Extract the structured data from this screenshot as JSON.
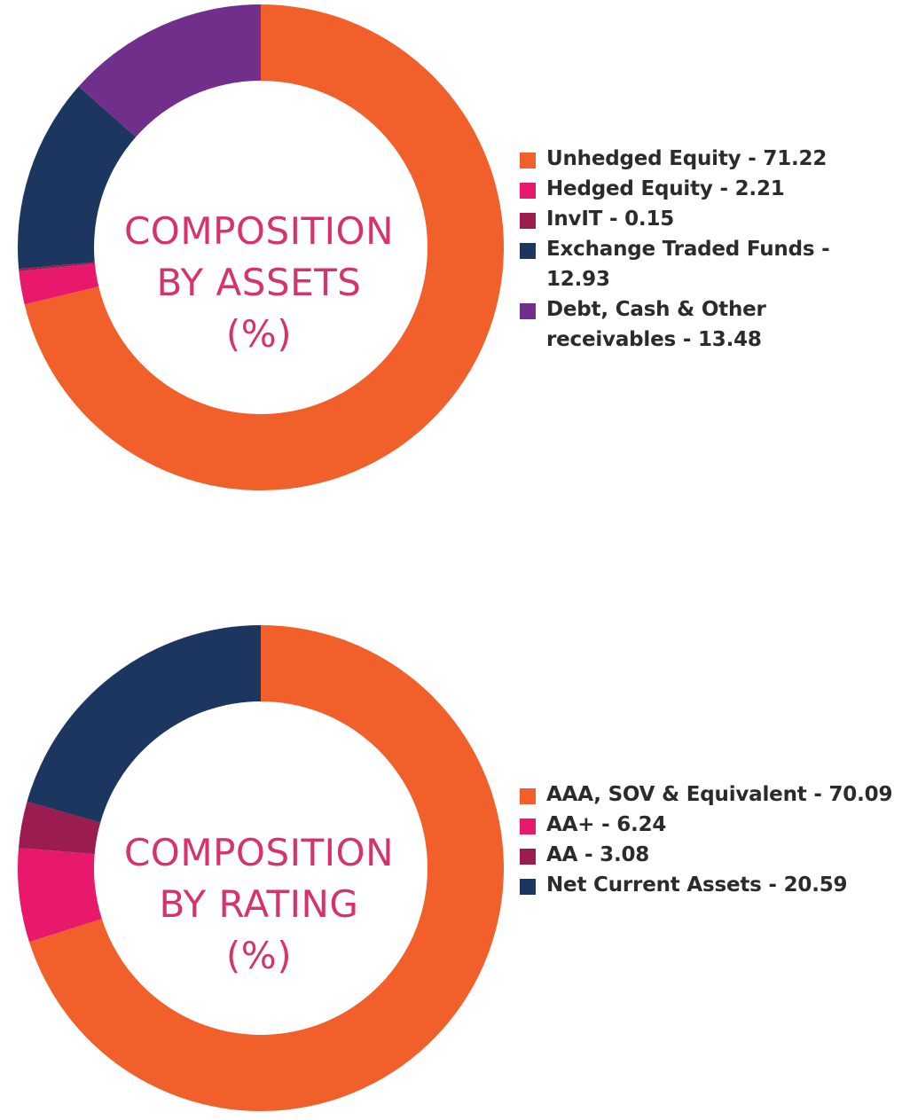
{
  "colors": {
    "orange": "#F15F2A",
    "pink": "#E8196C",
    "maroon": "#9B1C4E",
    "navy": "#1C3660",
    "purple": "#702F8A",
    "title": "#D6336C"
  },
  "chart_data": [
    {
      "type": "pie",
      "variant": "donut",
      "title_lines": [
        "COMPOSITION",
        "BY ASSETS",
        "(%)"
      ],
      "categories": [
        "Unhedged Equity",
        "Hedged Equity",
        "InvIT",
        "Exchange Traded Funds",
        "Debt, Cash & Other receivables"
      ],
      "values": [
        71.22,
        2.21,
        0.15,
        12.93,
        13.48
      ],
      "colors": [
        "#F15F2A",
        "#E8196C",
        "#9B1C4E",
        "#1C3660",
        "#702F8A"
      ],
      "legend_labels": [
        "Unhedged Equity - 71.22",
        "Hedged Equity - 2.21",
        "InvIT - 0.15",
        "Exchange Traded Funds - 12.93",
        "Debt, Cash & Other receivables - 13.48"
      ],
      "legend_position": "right"
    },
    {
      "type": "pie",
      "variant": "donut",
      "title_lines": [
        "COMPOSITION",
        "BY RATING",
        "(%)"
      ],
      "categories": [
        "AAA, SOV & Equivalent",
        "AA+",
        "AA",
        "Net Current Assets"
      ],
      "values": [
        70.09,
        6.24,
        3.08,
        20.59
      ],
      "colors": [
        "#F15F2A",
        "#E8196C",
        "#9B1C4E",
        "#1C3660"
      ],
      "legend_labels": [
        "AAA, SOV & Equivalent - 70.09",
        "AA+ - 6.24",
        "AA - 3.08",
        "Net Current Assets - 20.59"
      ],
      "legend_position": "right"
    }
  ]
}
